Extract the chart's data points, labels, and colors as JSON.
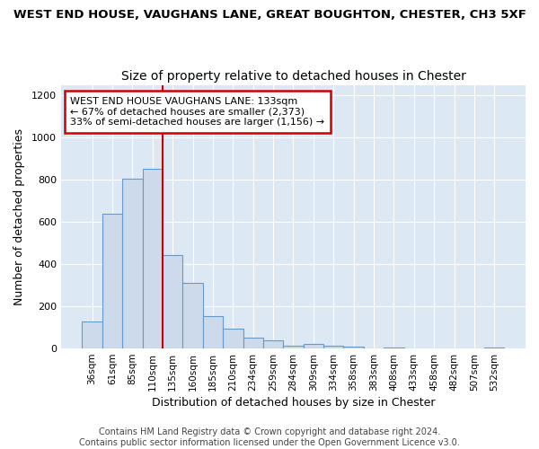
{
  "title1": "WEST END HOUSE, VAUGHANS LANE, GREAT BOUGHTON, CHESTER, CH3 5XF",
  "title2": "Size of property relative to detached houses in Chester",
  "xlabel": "Distribution of detached houses by size in Chester",
  "ylabel": "Number of detached properties",
  "categories": [
    "36sqm",
    "61sqm",
    "85sqm",
    "110sqm",
    "135sqm",
    "160sqm",
    "185sqm",
    "210sqm",
    "234sqm",
    "259sqm",
    "284sqm",
    "309sqm",
    "334sqm",
    "358sqm",
    "383sqm",
    "408sqm",
    "433sqm",
    "458sqm",
    "482sqm",
    "507sqm",
    "532sqm"
  ],
  "values": [
    130,
    640,
    805,
    850,
    445,
    310,
    155,
    95,
    50,
    40,
    12,
    20,
    15,
    8,
    2,
    3,
    1,
    2,
    0,
    0,
    5
  ],
  "bar_color": "#ccdaeb",
  "bar_edge_color": "#6699cc",
  "vline_color": "#cc0000",
  "vline_x_index": 4,
  "annotation_line1": "WEST END HOUSE VAUGHANS LANE: 133sqm",
  "annotation_line2": "← 67% of detached houses are smaller (2,373)",
  "annotation_line3": "33% of semi-detached houses are larger (1,156) →",
  "annotation_box_color": "#ffffff",
  "annotation_box_edge": "#cc0000",
  "footer": "Contains HM Land Registry data © Crown copyright and database right 2024.\nContains public sector information licensed under the Open Government Licence v3.0.",
  "ylim": [
    0,
    1250
  ],
  "yticks": [
    0,
    200,
    400,
    600,
    800,
    1000,
    1200
  ],
  "bg_color": "#dde8f5",
  "grid_color": "#ffffff",
  "fig_bg_color": "#ffffff",
  "title1_fontsize": 9.5,
  "title2_fontsize": 10,
  "footer_fontsize": 7
}
